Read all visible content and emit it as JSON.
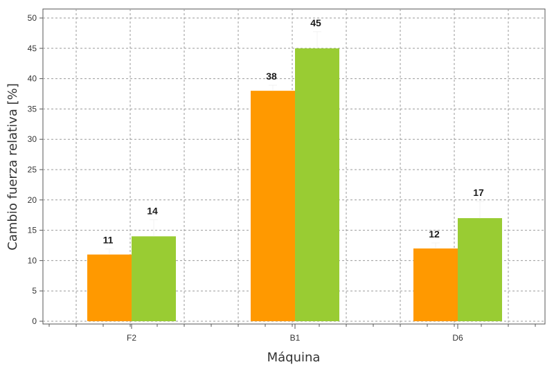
{
  "chart_data": {
    "type": "bar",
    "title": "",
    "xlabel": "Máquina",
    "ylabel": "Cambio fuerza relativa [%]",
    "categories": [
      "F2",
      "B1",
      "D6"
    ],
    "series": [
      {
        "values": [
          11,
          38,
          12
        ],
        "color": "#ff9900"
      },
      {
        "values": [
          14,
          45,
          17
        ],
        "color": "#99cc33"
      }
    ],
    "ylim": [
      0,
      50
    ],
    "yticks": [
      0,
      5,
      10,
      15,
      20,
      25,
      30,
      35,
      40,
      45,
      50
    ],
    "grid": true,
    "legend": "none"
  }
}
